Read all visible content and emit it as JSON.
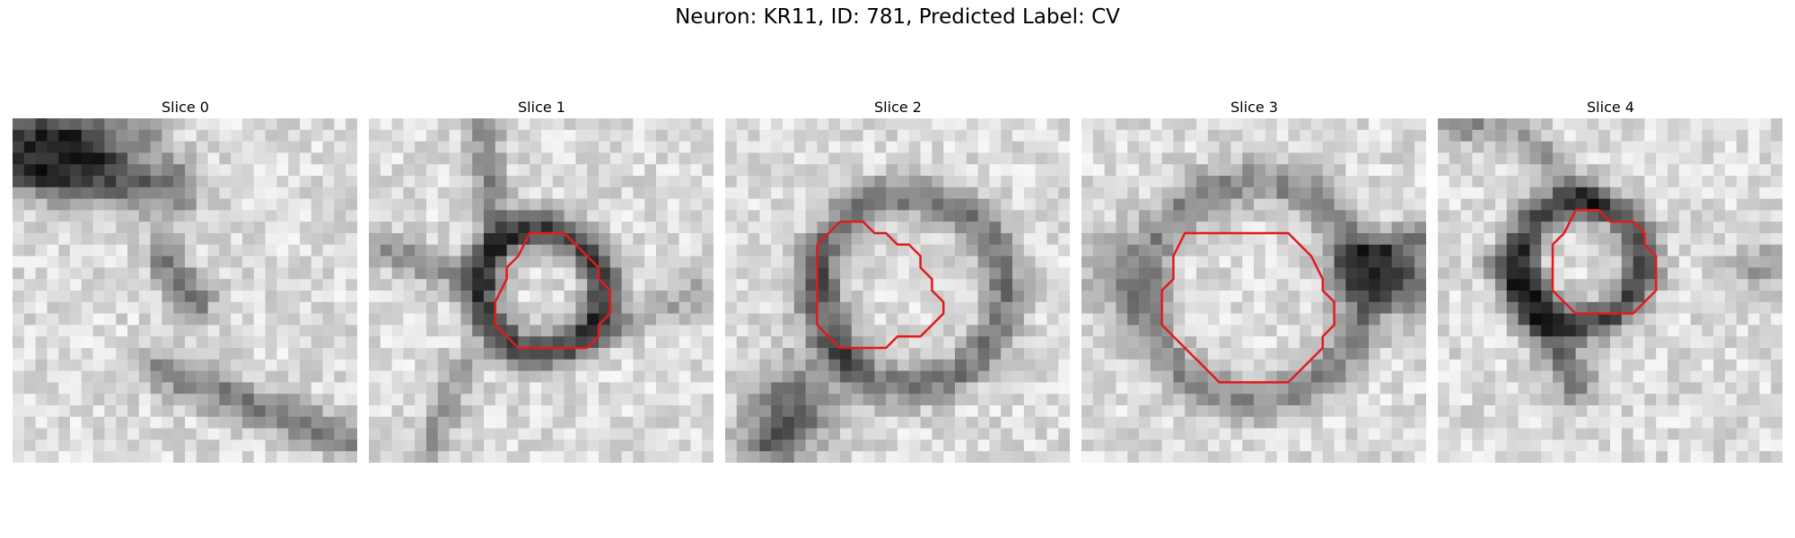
{
  "figure": {
    "title": "Neuron: KR11, ID: 781, Predicted Label: CV"
  },
  "contour_color": "#e31a1c",
  "colormap": "gray",
  "grid_size": 30,
  "slices": [
    {
      "title": "Slice 0",
      "has_contour": false
    },
    {
      "title": "Slice 1",
      "has_contour": true
    },
    {
      "title": "Slice 2",
      "has_contour": true
    },
    {
      "title": "Slice 3",
      "has_contour": true
    },
    {
      "title": "Slice 4",
      "has_contour": true
    }
  ]
}
